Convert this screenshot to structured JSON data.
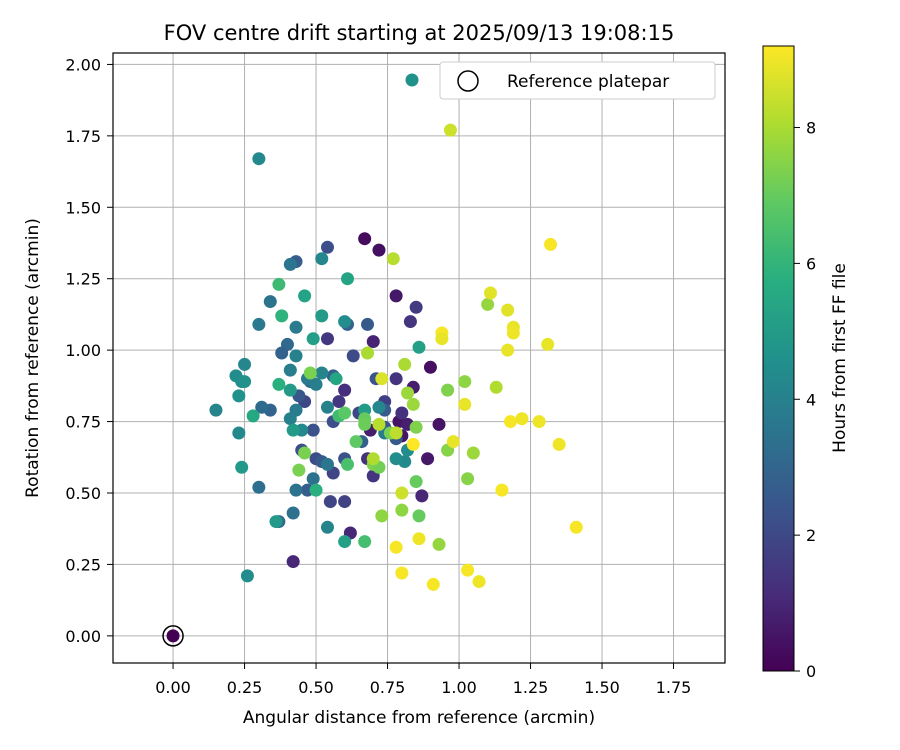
{
  "chart_data": {
    "type": "scatter",
    "title": "FOV centre drift starting at 2025/09/13 19:08:15",
    "xlabel": "Angular distance from reference (arcmin)",
    "ylabel": "Rotation from reference (arcmin)",
    "xlim": [
      -0.21,
      1.93
    ],
    "ylim": [
      -0.095,
      2.04
    ],
    "xticks": [
      "0.00",
      "0.25",
      "0.50",
      "0.75",
      "1.00",
      "1.25",
      "1.50",
      "1.75"
    ],
    "yticks": [
      "0.00",
      "0.25",
      "0.50",
      "0.75",
      "1.00",
      "1.25",
      "1.50",
      "1.75",
      "2.00"
    ],
    "grid": true,
    "legend": {
      "placement": "top-right",
      "entries": [
        "",
        "Reference platepar"
      ]
    },
    "reference": {
      "x": 0.0,
      "y": 0.0,
      "label": "Reference platepar"
    },
    "colorbar": {
      "label": "Hours from first FF file",
      "min": 0,
      "max": 9.2,
      "ticks": [
        "0",
        "2",
        "4",
        "6",
        "8"
      ],
      "colormap": "viridis"
    },
    "series": [
      {
        "points": [
          [
            0.67,
            1.39,
            0.3
          ],
          [
            0.72,
            1.35,
            0.4
          ],
          [
            0.78,
            1.19,
            0.6
          ],
          [
            0.79,
            0.75,
            0.5
          ],
          [
            0.8,
            0.7,
            0.5
          ],
          [
            0.69,
            0.72,
            0.7
          ],
          [
            0.82,
            0.74,
            0.8
          ],
          [
            0.9,
            0.94,
            0.4
          ],
          [
            0.93,
            0.74,
            0.5
          ],
          [
            0.89,
            0.62,
            0.6
          ],
          [
            0.87,
            0.49,
            1.0
          ],
          [
            0.84,
            0.87,
            0.7
          ],
          [
            0.7,
            1.03,
            0.9
          ],
          [
            0.62,
            0.36,
            1.0
          ],
          [
            0.42,
            0.26,
            1.0
          ],
          [
            0.6,
            0.86,
            1.2
          ],
          [
            0.54,
            1.04,
            1.5
          ],
          [
            0.58,
            0.82,
            1.5
          ],
          [
            0.68,
            0.62,
            1.3
          ],
          [
            0.7,
            0.56,
            1.4
          ],
          [
            0.78,
            0.9,
            1.4
          ],
          [
            0.8,
            0.78,
            1.3
          ],
          [
            0.85,
            1.15,
            1.6
          ],
          [
            0.83,
            1.1,
            1.4
          ],
          [
            0.74,
            0.82,
            1.7
          ],
          [
            0.6,
            0.47,
            1.8
          ],
          [
            0.55,
            0.47,
            1.9
          ],
          [
            0.56,
            0.57,
            1.9
          ],
          [
            0.65,
            0.78,
            2.0
          ],
          [
            0.5,
            0.62,
            2.1
          ],
          [
            0.45,
            0.65,
            2.2
          ],
          [
            0.46,
            0.82,
            2.0
          ],
          [
            0.49,
            0.72,
            2.3
          ],
          [
            0.56,
            0.75,
            2.2
          ],
          [
            0.63,
            0.98,
            2.1
          ],
          [
            0.71,
            0.9,
            2.4
          ],
          [
            0.74,
            0.73,
            2.4
          ],
          [
            0.78,
            0.69,
            2.6
          ],
          [
            0.54,
            1.36,
            2.2
          ],
          [
            0.43,
            1.31,
            2.7
          ],
          [
            0.44,
            0.84,
            2.5
          ],
          [
            0.47,
            0.51,
            2.7
          ],
          [
            0.52,
            0.61,
            2.6
          ],
          [
            0.6,
            0.62,
            2.3
          ],
          [
            0.66,
            0.68,
            2.8
          ],
          [
            0.68,
            1.09,
            2.6
          ],
          [
            0.74,
            0.79,
            2.7
          ],
          [
            0.61,
            1.09,
            2.9
          ],
          [
            0.56,
            0.91,
            2.8
          ],
          [
            0.48,
            0.89,
            3.0
          ],
          [
            0.4,
            1.02,
            3.1
          ],
          [
            0.38,
            0.99,
            2.9
          ],
          [
            0.34,
            0.79,
            3.0
          ],
          [
            0.31,
            0.8,
            3.2
          ],
          [
            0.3,
            0.52,
            3.3
          ],
          [
            0.37,
            0.4,
            3.1
          ],
          [
            0.42,
            0.43,
            3.4
          ],
          [
            0.43,
            0.51,
            3.5
          ],
          [
            0.49,
            0.55,
            3.4
          ],
          [
            0.54,
            0.6,
            3.6
          ],
          [
            0.54,
            0.38,
            4.1
          ],
          [
            0.41,
            1.3,
            3.6
          ],
          [
            0.3,
            1.09,
            3.7
          ],
          [
            0.34,
            1.17,
            3.5
          ],
          [
            0.43,
            1.08,
            3.8
          ],
          [
            0.41,
            0.93,
            3.9
          ],
          [
            0.43,
            0.98,
            4.0
          ],
          [
            0.47,
            0.9,
            3.7
          ],
          [
            0.5,
            0.88,
            3.9
          ],
          [
            0.52,
            0.92,
            4.1
          ],
          [
            0.54,
            0.8,
            4.0
          ],
          [
            0.45,
            0.72,
            4.3
          ],
          [
            0.43,
            0.79,
            3.8
          ],
          [
            0.41,
            0.76,
            4.0
          ],
          [
            0.72,
            0.8,
            4.2
          ],
          [
            0.74,
            0.71,
            3.8
          ],
          [
            0.81,
            0.61,
            4.3
          ],
          [
            0.82,
            0.65,
            4.4
          ],
          [
            0.78,
            0.62,
            4.4
          ],
          [
            0.6,
            1.1,
            4.4
          ],
          [
            0.52,
            1.32,
            4.2
          ],
          [
            0.3,
            1.67,
            4.3
          ],
          [
            0.25,
            0.95,
            4.2
          ],
          [
            0.24,
            0.89,
            4.5
          ],
          [
            0.22,
            0.91,
            4.4
          ],
          [
            0.15,
            0.79,
            4.1
          ],
          [
            0.23,
            0.71,
            4.3
          ],
          [
            0.23,
            0.84,
            4.6
          ],
          [
            0.25,
            0.89,
            4.6
          ],
          [
            0.26,
            0.21,
            4.4
          ],
          [
            0.24,
            0.59,
            4.9
          ],
          [
            0.36,
            0.4,
            4.9
          ],
          [
            0.41,
            0.86,
            5.0
          ],
          [
            0.42,
            0.72,
            5.0
          ],
          [
            0.49,
            1.04,
            5.1
          ],
          [
            0.52,
            1.12,
            5.0
          ],
          [
            0.46,
            1.19,
            5.3
          ],
          [
            0.6,
            0.33,
            5.2
          ],
          [
            0.61,
            1.25,
            5.3
          ],
          [
            0.67,
            0.79,
            5.0
          ],
          [
            0.86,
            1.01,
            5.2
          ],
          [
            0.57,
            0.9,
            5.4
          ],
          [
            0.28,
            0.77,
            5.5
          ],
          [
            0.37,
            0.88,
            5.8
          ],
          [
            0.5,
            0.51,
            5.8
          ],
          [
            0.38,
            1.12,
            5.9
          ],
          [
            0.37,
            1.23,
            6.2
          ],
          [
            0.58,
            0.77,
            6.3
          ],
          [
            0.61,
            0.6,
            6.5
          ],
          [
            0.67,
            0.33,
            6.4
          ],
          [
            0.6,
            0.78,
            6.8
          ],
          [
            0.67,
            0.76,
            7.0
          ],
          [
            0.64,
            0.68,
            6.9
          ],
          [
            0.46,
            0.64,
            7.3
          ],
          [
            0.44,
            0.58,
            7.3
          ],
          [
            0.48,
            0.92,
            7.3
          ],
          [
            0.67,
            0.74,
            7.1
          ],
          [
            0.7,
            0.6,
            7.4
          ],
          [
            0.72,
            0.59,
            7.2
          ],
          [
            0.73,
            0.42,
            7.6
          ],
          [
            0.76,
            0.71,
            7.3
          ],
          [
            0.84,
            0.81,
            7.8
          ],
          [
            0.82,
            0.85,
            7.8
          ],
          [
            0.85,
            0.73,
            7.4
          ],
          [
            0.85,
            0.54,
            7.0
          ],
          [
            0.86,
            0.42,
            7.0
          ],
          [
            0.93,
            0.32,
            7.7
          ],
          [
            0.96,
            0.86,
            7.4
          ],
          [
            0.96,
            0.65,
            7.5
          ],
          [
            1.02,
            0.89,
            7.6
          ],
          [
            1.03,
            0.55,
            7.5
          ],
          [
            1.05,
            0.64,
            7.8
          ],
          [
            1.1,
            1.16,
            7.7
          ],
          [
            1.13,
            0.87,
            8.1
          ],
          [
            0.81,
            0.95,
            8.0
          ],
          [
            0.8,
            0.44,
            7.6
          ],
          [
            0.8,
            0.5,
            8.5
          ],
          [
            0.78,
            0.71,
            8.3
          ],
          [
            0.72,
            0.74,
            8.2
          ],
          [
            0.7,
            0.62,
            8.1
          ],
          [
            0.73,
            0.9,
            8.7
          ],
          [
            0.77,
            1.32,
            8.2
          ],
          [
            0.68,
            0.99,
            8.0
          ],
          [
            0.97,
            1.77,
            8.5
          ],
          [
            1.11,
            1.2,
            8.8
          ],
          [
            1.17,
            1.14,
            8.8
          ],
          [
            1.17,
            1.0,
            8.9
          ],
          [
            1.19,
            1.08,
            8.9
          ],
          [
            1.19,
            1.06,
            9.0
          ],
          [
            1.18,
            0.75,
            9.1
          ],
          [
            1.22,
            0.76,
            9.0
          ],
          [
            1.28,
            0.75,
            9.0
          ],
          [
            1.31,
            1.02,
            8.9
          ],
          [
            1.32,
            1.37,
            9.1
          ],
          [
            1.35,
            0.67,
            9.0
          ],
          [
            1.41,
            0.38,
            9.1
          ],
          [
            1.02,
            0.81,
            8.9
          ],
          [
            0.94,
            1.06,
            9.1
          ],
          [
            0.94,
            1.04,
            8.9
          ],
          [
            0.98,
            0.68,
            8.9
          ],
          [
            1.03,
            0.23,
            9.1
          ],
          [
            1.07,
            0.19,
            9.0
          ],
          [
            1.15,
            0.51,
            9.1
          ],
          [
            0.86,
            0.34,
            9.0
          ],
          [
            0.91,
            0.18,
            9.1
          ],
          [
            0.8,
            0.22,
            9.1
          ],
          [
            0.78,
            0.31,
            9.1
          ],
          [
            0.84,
            0.67,
            9.2
          ]
        ]
      }
    ]
  }
}
